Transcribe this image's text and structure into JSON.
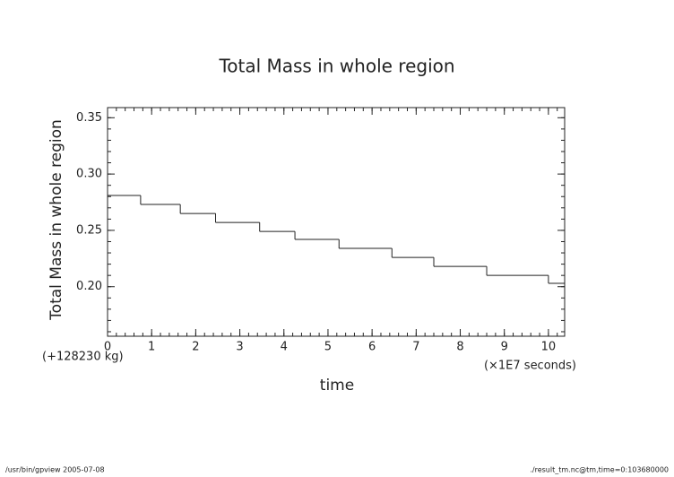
{
  "chart_data": {
    "type": "step",
    "title": "Total Mass in whole region",
    "y_label": "Total Mass in whole region",
    "x_label": "time",
    "y_offset_label": "(+128230 kg)",
    "x_unit_label": "(×1E7 seconds)",
    "footer_left": "/usr/bin/gpview   2005-07-08",
    "footer_right": "./result_tm.nc@tm,time=0:103680000",
    "color": "#222222",
    "x": [
      0,
      0.75,
      1.65,
      2.45,
      3.45,
      4.25,
      5.25,
      6.45,
      7.4,
      8.6,
      10.0
    ],
    "values": [
      0.281,
      0.273,
      0.265,
      0.257,
      0.249,
      0.242,
      0.234,
      0.226,
      0.218,
      0.21,
      0.203
    ],
    "xlim": [
      0,
      10.368
    ],
    "ylim": [
      0.156,
      0.359
    ],
    "xticks": [
      0,
      1,
      2,
      3,
      4,
      5,
      6,
      7,
      8,
      9,
      10
    ],
    "yticks": [
      {
        "value": 0.2,
        "label": "0.20"
      },
      0.25,
      {
        "value": 0.3,
        "label": "0.30"
      },
      0.35
    ]
  }
}
